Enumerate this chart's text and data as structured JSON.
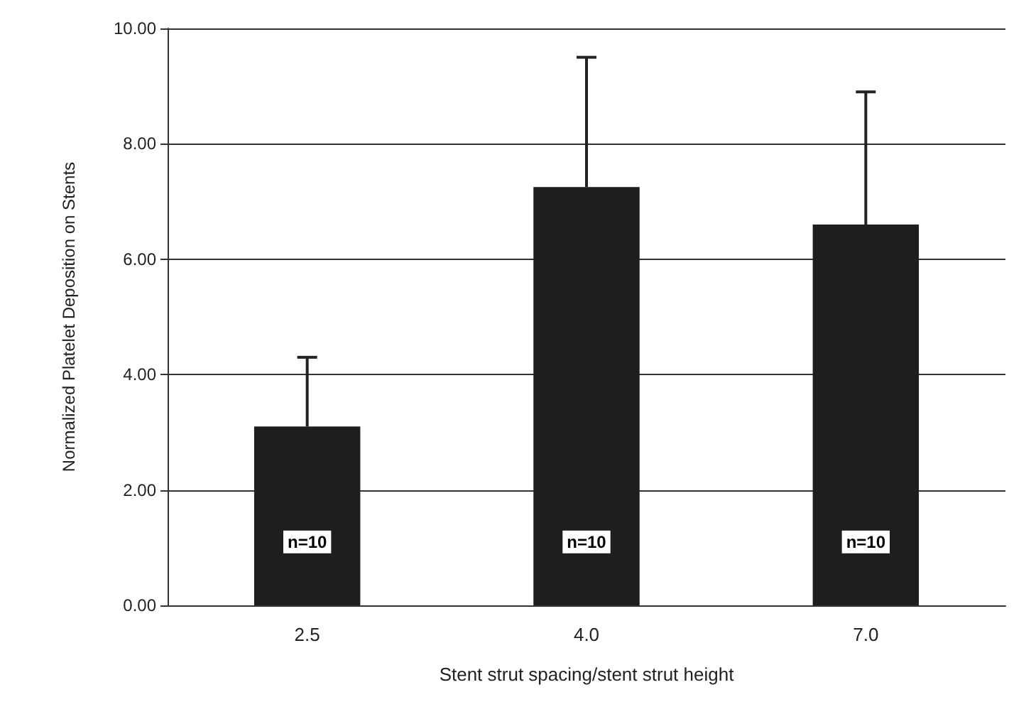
{
  "chart_data": {
    "type": "bar",
    "xlabel": "Stent strut spacing/stent strut height",
    "ylabel": "Normalized Platelet Deposition on Stents",
    "categories": [
      "2.5",
      "4.0",
      "7.0"
    ],
    "values": [
      3.1,
      7.25,
      6.6
    ],
    "errors": [
      [
        3.1,
        4.3
      ],
      [
        7.25,
        9.5
      ],
      [
        6.6,
        8.9
      ]
    ],
    "color": "#1e1e1e",
    "ylim": [
      0,
      10
    ],
    "yticks": [
      {
        "value": 0,
        "label": "0.00"
      },
      {
        "value": 2,
        "label": "2.00"
      },
      {
        "value": 4,
        "label": "4.00"
      },
      {
        "value": 6,
        "label": "6.00"
      },
      {
        "value": 8,
        "label": "8.00"
      },
      {
        "value": 10,
        "label": "10.00"
      }
    ],
    "grid": "y",
    "annotations": [
      {
        "text": "n=10",
        "x": "2.5",
        "y": 1.1
      },
      {
        "text": "n=10",
        "x": "4.0",
        "y": 1.1
      },
      {
        "text": "n=10",
        "x": "7.0",
        "y": 1.1
      }
    ]
  }
}
